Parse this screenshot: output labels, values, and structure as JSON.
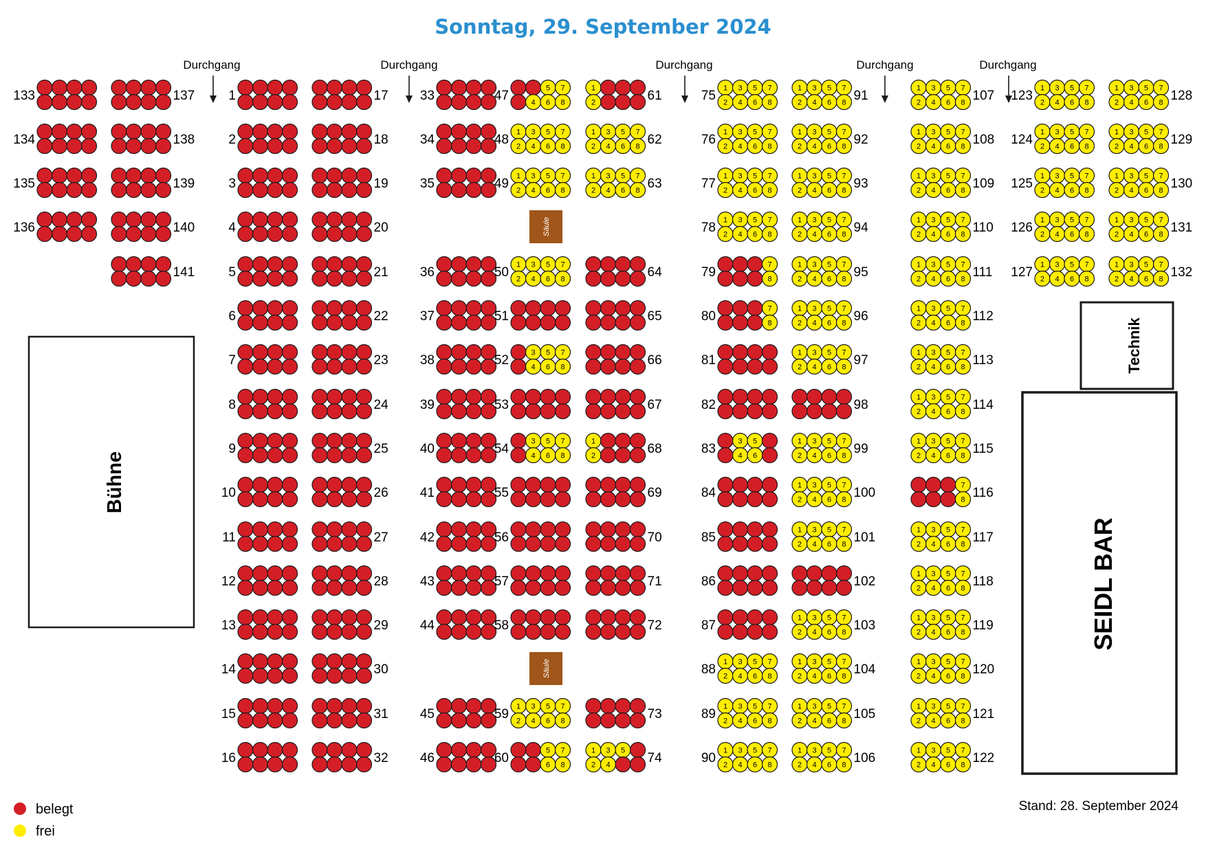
{
  "title": "Sonntag, 29. September 2024",
  "stand": "Stand: 28. September 2024",
  "colors": {
    "title": "#2a8fcf",
    "occupied": "#d41e26",
    "free": "#ffed00",
    "pillar": "#a0561a",
    "pillar_text": "#ffffff",
    "outline": "#1a1a1a"
  },
  "legend": [
    {
      "key": "occupied",
      "label": "belegt"
    },
    {
      "key": "free",
      "label": "frei"
    }
  ],
  "aisle_label": "Durchgang",
  "rooms": {
    "stage": "Bühne",
    "bar": "SEIDL BAR",
    "tech": "Technik"
  },
  "pillar_label": "Säule",
  "tables": {
    "1": "O",
    "2": "O",
    "3": "O",
    "4": "O",
    "5": "O",
    "6": "O",
    "7": "O",
    "8": "O",
    "9": "O",
    "10": "O",
    "11": "O",
    "12": "O",
    "13": "O",
    "14": "O",
    "15": "O",
    "16": "O",
    "17": "O",
    "18": "O",
    "19": "O",
    "20": "O",
    "21": "O",
    "22": "O",
    "23": "O",
    "24": "O",
    "25": "O",
    "26": "O",
    "27": "O",
    "28": "O",
    "29": "O",
    "30": "O",
    "31": "O",
    "32": "O",
    "33": "O",
    "34": "O",
    "35": "O",
    "36": "O",
    "37": "O",
    "38": "O",
    "39": "O",
    "40": "O",
    "41": "O",
    "42": "O",
    "43": "O",
    "44": "O",
    "45": "O",
    "46": "O",
    "47": "OOFFOFFF",
    "48": "F",
    "49": "F",
    "50": "F",
    "51": "O",
    "52": "OFFFOFFF",
    "53": "O",
    "54": "OFFFOFFF",
    "55": "O",
    "56": "O",
    "57": "O",
    "58": "O",
    "59": "F",
    "60": "OOFFOOFF",
    "61": "FOOOFOOO",
    "62": "F",
    "63": "F",
    "64": "O",
    "65": "O",
    "66": "O",
    "67": "O",
    "68": "FOOOFOOO",
    "69": "O",
    "70": "O",
    "71": "O",
    "72": "O",
    "73": "O",
    "74": "FFFOFFOO",
    "75": "F",
    "76": "F",
    "77": "F",
    "78": "F",
    "79": "OOOFOOOF",
    "80": "OOOFOOOF",
    "81": "O",
    "82": "O",
    "83": "OFFOOFFO",
    "84": "O",
    "85": "O",
    "86": "O",
    "87": "O",
    "88": "F",
    "89": "F",
    "90": "F",
    "91": "F",
    "92": "F",
    "93": "F",
    "94": "F",
    "95": "F",
    "96": "F",
    "97": "F",
    "98": "O",
    "99": "F",
    "100": "F",
    "101": "F",
    "102": "O",
    "103": "F",
    "104": "F",
    "105": "F",
    "106": "F",
    "107": "F",
    "108": "F",
    "109": "F",
    "110": "F",
    "111": "F",
    "112": "F",
    "113": "F",
    "114": "F",
    "115": "F",
    "116": "OOOFOOOF",
    "117": "F",
    "118": "F",
    "119": "F",
    "120": "F",
    "121": "F",
    "122": "F",
    "123": "F",
    "124": "F",
    "125": "F",
    "126": "F",
    "127": "F",
    "128": "F",
    "129": "F",
    "130": "F",
    "131": "F",
    "132": "F",
    "133": "O",
    "134": "O",
    "135": "O",
    "136": "O",
    "137": "O",
    "138": "O",
    "139": "O",
    "140": "O",
    "141": "O"
  }
}
